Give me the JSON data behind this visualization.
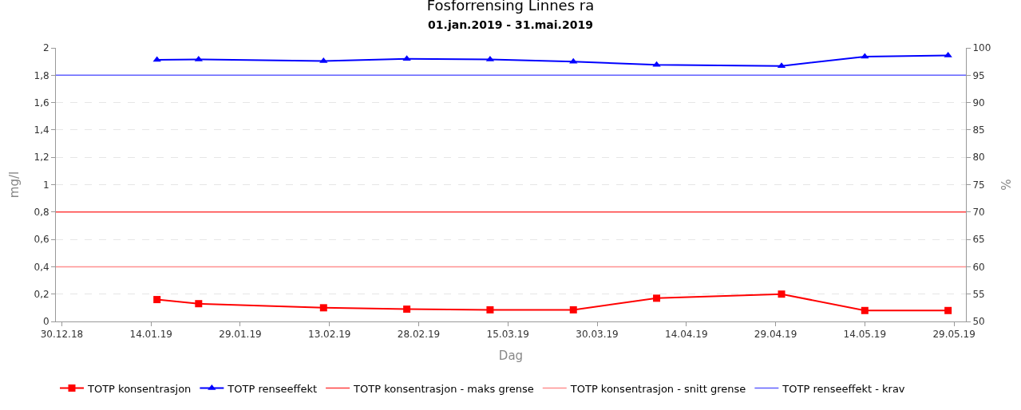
{
  "chart_data": {
    "type": "line",
    "title": "Fosforrensing Linnes ra",
    "subtitle": "01.jan.2019 - 31.mai.2019",
    "xlabel": "Dag",
    "ylabel": "mg/l",
    "y2label": "%",
    "series": [
      {
        "name": "TOTP konsentrasjon",
        "color": "#ff0000",
        "marker": "square",
        "x": [
          "2019-01-15",
          "2019-01-22",
          "2019-02-12",
          "2019-02-26",
          "2019-03-12",
          "2019-03-26",
          "2019-04-09",
          "2019-04-30",
          "2019-05-14",
          "2019-05-28"
        ],
        "values": [
          0.16,
          0.13,
          0.1,
          0.09,
          0.085,
          0.085,
          0.17,
          0.2,
          0.08,
          0.08
        ]
      },
      {
        "name": "TOTP renseeffekt",
        "color": "#0000ff",
        "marker": "triangle",
        "axis": "y2",
        "x": [
          "2019-01-15",
          "2019-01-22",
          "2019-02-12",
          "2019-02-26",
          "2019-03-12",
          "2019-03-26",
          "2019-04-09",
          "2019-04-30",
          "2019-05-14",
          "2019-05-28"
        ],
        "values": [
          97.8,
          97.9,
          97.6,
          98.0,
          97.9,
          97.5,
          96.9,
          96.7,
          98.4,
          98.6
        ]
      }
    ],
    "ref_lines": [
      {
        "axis": "y",
        "value": 0.8,
        "label": "TOTP konsentrasjon - maks grense",
        "color": "#ff4040"
      },
      {
        "axis": "y",
        "value": 0.4,
        "label": "TOTP konsentrasjon - snitt grense",
        "color": "#ff9090"
      },
      {
        "axis": "y2",
        "value": 95,
        "label": "TOTP renseeffekt - krav",
        "color": "#6060ff"
      }
    ],
    "xlim": [
      "2018-12-29",
      "2019-05-31"
    ],
    "xticks": [
      {
        "value": "2018-12-30",
        "label": "30.12.18"
      },
      {
        "value": "2019-01-14",
        "label": "14.01.19"
      },
      {
        "value": "2019-01-29",
        "label": "29.01.19"
      },
      {
        "value": "2019-02-13",
        "label": "13.02.19"
      },
      {
        "value": "2019-02-28",
        "label": "28.02.19"
      },
      {
        "value": "2019-03-15",
        "label": "15.03.19"
      },
      {
        "value": "2019-03-30",
        "label": "30.03.19"
      },
      {
        "value": "2019-04-14",
        "label": "14.04.19"
      },
      {
        "value": "2019-04-29",
        "label": "29.04.19"
      },
      {
        "value": "2019-05-14",
        "label": "14.05.19"
      },
      {
        "value": "2019-05-29",
        "label": "29.05.19"
      }
    ],
    "ylim": [
      0,
      2
    ],
    "yticks": [
      0,
      {
        "value": 0.2,
        "label": "0,2"
      },
      {
        "value": 0.4,
        "label": "0,4"
      },
      {
        "value": 0.6,
        "label": "0,6"
      },
      {
        "value": 0.8,
        "label": "0,8"
      },
      1,
      {
        "value": 1.2,
        "label": "1,2"
      },
      {
        "value": 1.4,
        "label": "1,4"
      },
      {
        "value": 1.6,
        "label": "1,6"
      },
      {
        "value": 1.8,
        "label": "1,8"
      },
      2
    ],
    "y2lim": [
      50,
      100
    ],
    "y2ticks": [
      50,
      55,
      60,
      65,
      70,
      75,
      80,
      85,
      90,
      95,
      100
    ],
    "grid": "y",
    "legend": "bottom",
    "line_style": "solid"
  }
}
